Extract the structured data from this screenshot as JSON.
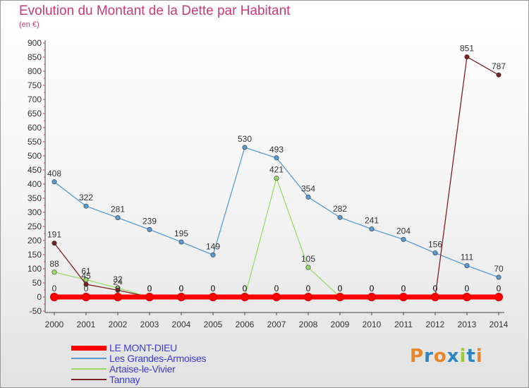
{
  "header": {
    "title": "Evolution du Montant de la Dette par Habitant",
    "subtitle": "(en €)"
  },
  "legend": {
    "items": [
      {
        "label": "LE MONT-DIEU",
        "color": "#ff0000"
      },
      {
        "label": "Les Grandes-Armoises",
        "color": "#5a9bd4"
      },
      {
        "label": "Artaise-le-Vivier",
        "color": "#99dd66"
      },
      {
        "label": "Tannay",
        "color": "#7a2222"
      }
    ]
  },
  "logo": {
    "text": "Proxiti",
    "colors": [
      "#e8862a",
      "#2e86c1",
      "#e8862a",
      "#2e86c1",
      "#99cc33",
      "#2e86c1",
      "#e8862a"
    ]
  },
  "chart_data": {
    "type": "line",
    "title": "Evolution du Montant de la Dette par Habitant",
    "ylabel": "(en €)",
    "xlabel": "",
    "x": [
      "2000",
      "2001",
      "2002",
      "2003",
      "2004",
      "2005",
      "2006",
      "2007",
      "2008",
      "2009",
      "2010",
      "2011",
      "2012",
      "2013",
      "2014"
    ],
    "ylim": [
      -50,
      900
    ],
    "yticks": [
      -50,
      0,
      50,
      100,
      150,
      200,
      250,
      300,
      350,
      400,
      450,
      500,
      550,
      600,
      650,
      700,
      750,
      800,
      850,
      900
    ],
    "grid": false,
    "legend_position": "bottom-left",
    "series": [
      {
        "name": "LE MONT-DIEU",
        "color": "#ff0000",
        "values": [
          0,
          0,
          0,
          0,
          0,
          0,
          0,
          0,
          0,
          0,
          0,
          0,
          0,
          0,
          0
        ]
      },
      {
        "name": "Les Grandes-Armoises",
        "color": "#5a9bd4",
        "values": [
          408,
          322,
          281,
          239,
          195,
          149,
          530,
          493,
          354,
          282,
          241,
          204,
          156,
          111,
          70
        ]
      },
      {
        "name": "Artaise-le-Vivier",
        "color": "#99dd66",
        "values": [
          88,
          61,
          32,
          0,
          0,
          0,
          0,
          421,
          105,
          0,
          0,
          0,
          0,
          0,
          0
        ]
      },
      {
        "name": "Tannay",
        "color": "#7a2222",
        "values": [
          191,
          45,
          24,
          0,
          0,
          0,
          0,
          0,
          0,
          0,
          0,
          0,
          0,
          851,
          787
        ]
      }
    ]
  }
}
